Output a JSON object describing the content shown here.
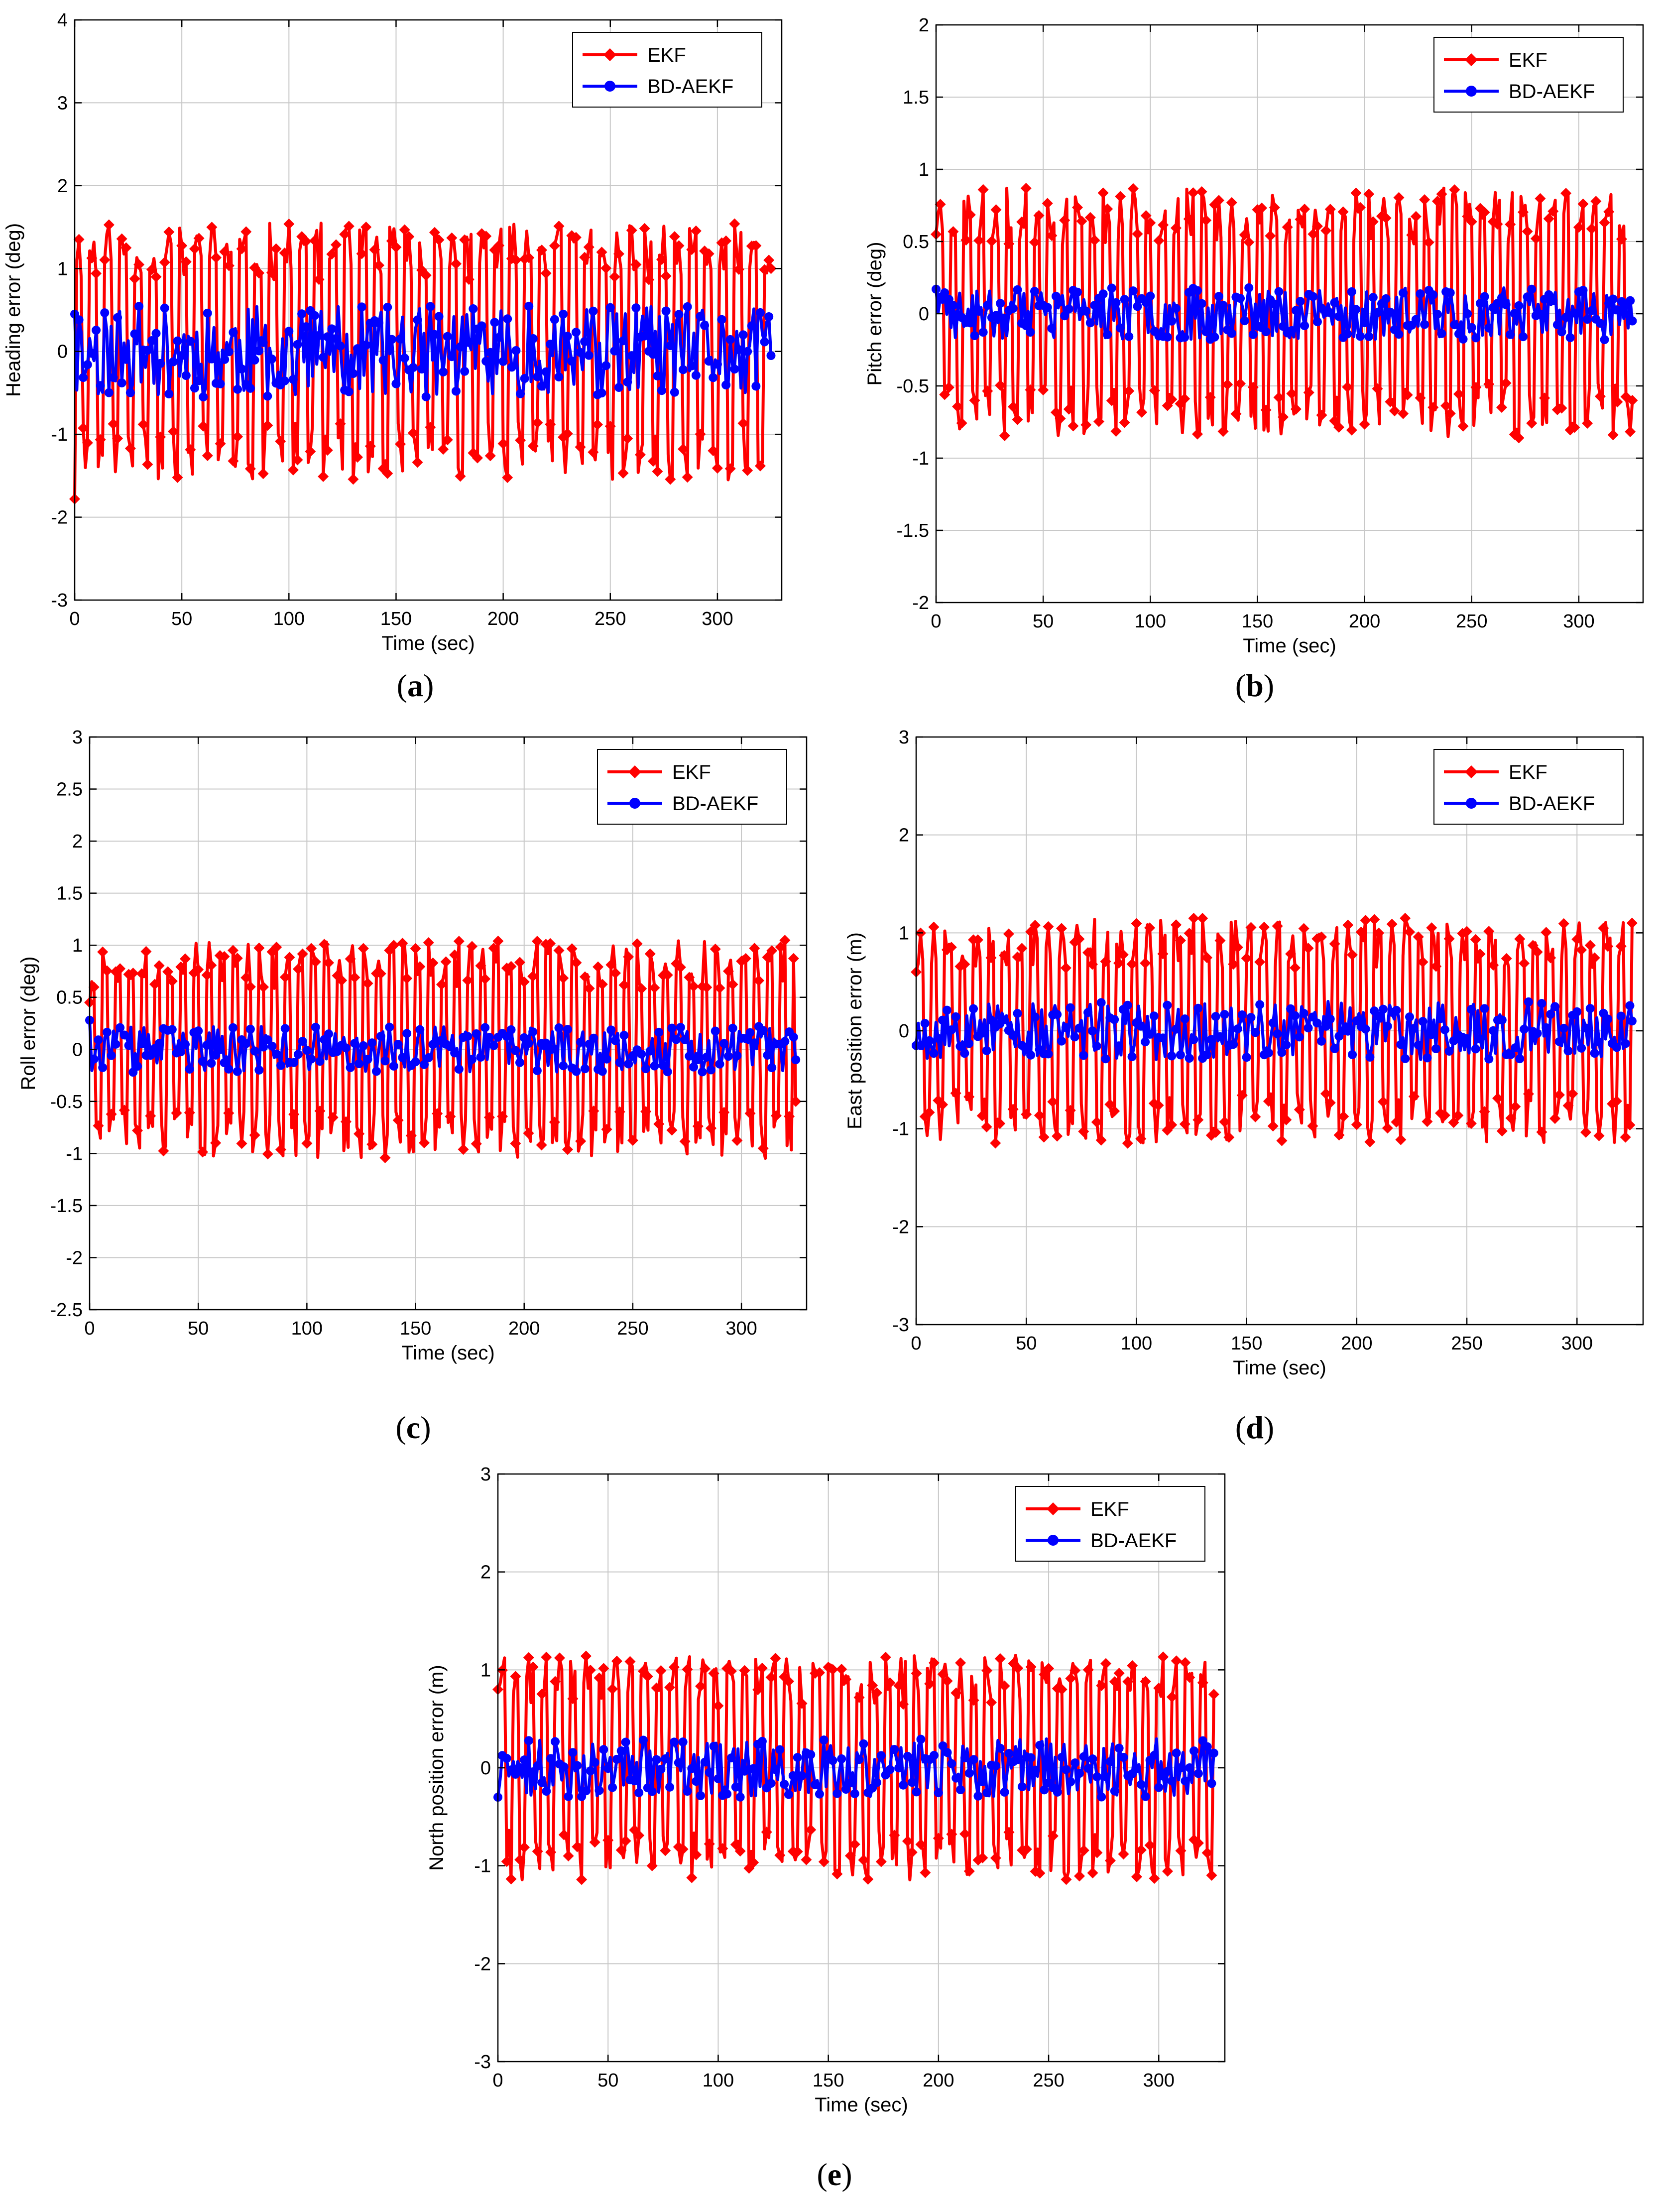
{
  "figure": {
    "series_names": [
      "EKF",
      "BD-AEKF"
    ],
    "colors": {
      "ekf": "#ff0000",
      "bdaekf": "#0000ff",
      "grid": "#c8c8c8",
      "axis": "#000000"
    }
  },
  "chart_data": [
    {
      "id": "a",
      "type": "line",
      "caption": "a",
      "xlabel": "Time (sec)",
      "ylabel": "Heading error (deg)",
      "xlim": [
        0,
        330
      ],
      "ylim": [
        -3,
        4
      ],
      "xticks": [
        0,
        50,
        100,
        150,
        200,
        250,
        300
      ],
      "yticks": [
        -3,
        -2,
        -1,
        0,
        1,
        2,
        3,
        4
      ],
      "ytick_labels": [
        "-3",
        "-2",
        "-1",
        "0",
        "1",
        "2",
        "3",
        "4"
      ],
      "legend": "top-right",
      "grid": true,
      "ekf_amp": 1.55,
      "ekf_offset": 0.0,
      "ekf_period": 7.0,
      "ekf_first": -1.78,
      "ekf_last": 1.0,
      "bd_amp": 0.55,
      "bd_offset": 0.0,
      "bd_first": 0.45,
      "bd_last": -0.05,
      "n": 325,
      "step": 1,
      "seed": 11,
      "series": [
        {
          "name": "EKF"
        },
        {
          "name": "BD-AEKF"
        }
      ]
    },
    {
      "id": "b",
      "type": "line",
      "caption": "b",
      "xlabel": "Time (sec)",
      "ylabel": "Pitch error (deg)",
      "xlim": [
        0,
        330
      ],
      "ylim": [
        -2,
        2
      ],
      "xticks": [
        0,
        50,
        100,
        150,
        200,
        250,
        300
      ],
      "yticks": [
        -2,
        -1.5,
        -1,
        -0.5,
        0,
        0.5,
        1,
        1.5,
        2
      ],
      "ytick_labels": [
        "-2",
        "-1.5",
        "-1",
        "-0.5",
        "0",
        "0.5",
        "1",
        "1.5",
        "2"
      ],
      "legend": "top-right",
      "grid": true,
      "ekf_amp": 0.87,
      "ekf_offset": 0.0,
      "ekf_period": 6.5,
      "ekf_first": 0.55,
      "ekf_last": -0.6,
      "bd_amp": 0.18,
      "bd_offset": 0.0,
      "bd_first": 0.17,
      "bd_last": -0.05,
      "n": 325,
      "step": 1,
      "seed": 23,
      "series": [
        {
          "name": "EKF"
        },
        {
          "name": "BD-AEKF"
        }
      ]
    },
    {
      "id": "c",
      "type": "line",
      "caption": "c",
      "xlabel": "Time (sec)",
      "ylabel": "Roll error (deg)",
      "xlim": [
        0,
        330
      ],
      "ylim": [
        -2.5,
        3
      ],
      "xticks": [
        0,
        50,
        100,
        150,
        200,
        250,
        300
      ],
      "yticks": [
        -2.5,
        -2,
        -1.5,
        -1,
        -0.5,
        0,
        0.5,
        1,
        1.5,
        2,
        2.5,
        3
      ],
      "ytick_labels": [
        "-2.5",
        "-2",
        "-1.5",
        "-1",
        "-0.5",
        "0",
        "0.5",
        "1",
        "1.5",
        "2",
        "2.5",
        "3"
      ],
      "legend": "top-right",
      "grid": true,
      "ekf_amp": 1.05,
      "ekf_offset": 0.0,
      "ekf_period": 6.0,
      "ekf_first": 0.45,
      "ekf_last": -0.5,
      "bd_amp": 0.22,
      "bd_offset": 0.0,
      "bd_first": 0.28,
      "bd_last": -0.1,
      "n": 325,
      "step": 1,
      "seed": 37,
      "series": [
        {
          "name": "EKF"
        },
        {
          "name": "BD-AEKF"
        }
      ]
    },
    {
      "id": "d",
      "type": "line",
      "caption": "d",
      "xlabel": "Time (sec)",
      "ylabel": "East position error (m)",
      "xlim": [
        0,
        330
      ],
      "ylim": [
        -3,
        3
      ],
      "xticks": [
        0,
        50,
        100,
        150,
        200,
        250,
        300
      ],
      "yticks": [
        -3,
        -2,
        -1,
        0,
        1,
        2,
        3
      ],
      "ytick_labels": [
        "-3",
        "-2",
        "-1",
        "0",
        "1",
        "2",
        "3"
      ],
      "legend": "top-right",
      "grid": true,
      "ekf_amp": 1.15,
      "ekf_offset": 0.0,
      "ekf_period": 6.5,
      "ekf_first": 0.6,
      "ekf_last": 1.1,
      "bd_amp": 0.3,
      "bd_offset": 0.0,
      "bd_first": -0.15,
      "bd_last": 0.1,
      "n": 325,
      "step": 1,
      "seed": 53,
      "series": [
        {
          "name": "EKF"
        },
        {
          "name": "BD-AEKF"
        }
      ]
    },
    {
      "id": "e",
      "type": "line",
      "caption": "e",
      "xlabel": "Time (sec)",
      "ylabel": "North position error (m)",
      "xlim": [
        0,
        330
      ],
      "ylim": [
        -3,
        3
      ],
      "xticks": [
        0,
        50,
        100,
        150,
        200,
        250,
        300
      ],
      "yticks": [
        -3,
        -2,
        -1,
        0,
        1,
        2,
        3
      ],
      "ytick_labels": [
        "-3",
        "-2",
        "-1",
        "0",
        "1",
        "2",
        "3"
      ],
      "legend": "top-right",
      "grid": true,
      "ekf_amp": 1.15,
      "ekf_offset": 0.0,
      "ekf_period": 6.5,
      "ekf_first": 0.8,
      "ekf_last": 0.75,
      "bd_amp": 0.3,
      "bd_offset": 0.0,
      "bd_first": -0.3,
      "bd_last": 0.15,
      "n": 325,
      "step": 1,
      "seed": 71,
      "series": [
        {
          "name": "EKF"
        },
        {
          "name": "BD-AEKF"
        }
      ]
    }
  ]
}
